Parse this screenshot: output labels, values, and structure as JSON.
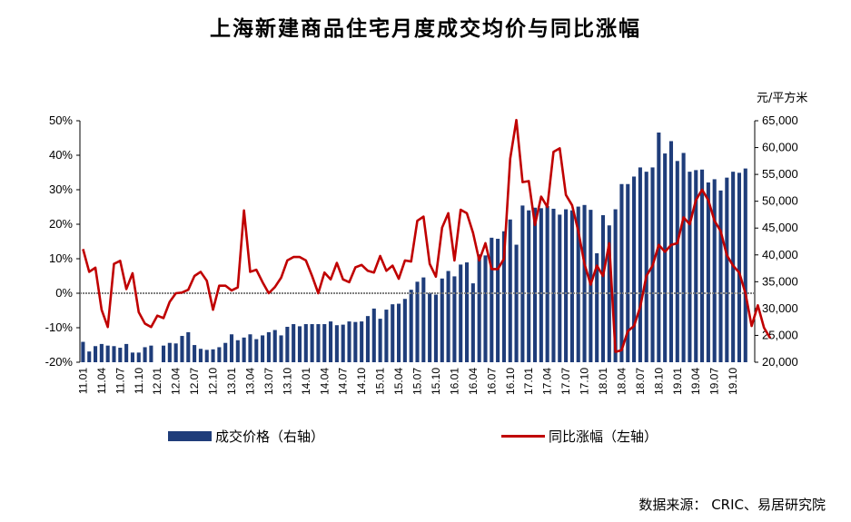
{
  "title": "上海新建商品住宅月度成交均价与同比涨幅",
  "source": "数据来源： CRIC、易居研究院",
  "legend": {
    "bar": "成交价格（右轴）",
    "line": "同比涨幅（左轴）"
  },
  "colors": {
    "bar": "#1F3D7A",
    "line": "#C00000",
    "zero_line": "#808080"
  },
  "chart_data": {
    "type": "bar+line",
    "x_tick_labels": [
      "11.01",
      "11.04",
      "11.07",
      "11.10",
      "12.01",
      "12.04",
      "12.07",
      "12.10",
      "13.01",
      "13.04",
      "13.07",
      "13.10",
      "14.01",
      "14.04",
      "14.07",
      "14.10",
      "15.01",
      "15.04",
      "15.07",
      "15.10",
      "16.01",
      "16.04",
      "16.07",
      "16.10",
      "17.01",
      "17.04",
      "17.07",
      "17.10",
      "18.01",
      "18.04",
      "18.07",
      "18.10",
      "19.01",
      "19.04",
      "19.07",
      "19.10"
    ],
    "y_left": {
      "min": -0.2,
      "max": 0.5,
      "ticks": [
        "-20%",
        "-10%",
        "0%",
        "10%",
        "20%",
        "30%",
        "40%",
        "50%"
      ]
    },
    "y_right": {
      "min": 20000,
      "max": 65000,
      "unit": "元/平方米",
      "ticks": [
        "20,000",
        "25,000",
        "30,000",
        "35,000",
        "40,000",
        "45,000",
        "50,000",
        "55,000",
        "60,000",
        "65,000"
      ]
    },
    "series": [
      {
        "name": "成交价格（右轴）",
        "type": "bar",
        "axis": "right",
        "values": [
          23800,
          22000,
          23000,
          23400,
          23100,
          23000,
          22700,
          23400,
          21800,
          21800,
          22800,
          23100,
          19900,
          23100,
          23600,
          23500,
          24900,
          25600,
          23200,
          22500,
          22300,
          22400,
          22800,
          23600,
          25200,
          24100,
          24600,
          25200,
          24300,
          25000,
          25600,
          26000,
          25000,
          26600,
          27100,
          26700,
          27100,
          27100,
          27100,
          27100,
          27600,
          26900,
          27000,
          27600,
          27500,
          27600,
          28600,
          30000,
          28100,
          29800,
          30800,
          30900,
          31800,
          33500,
          35000,
          35800,
          32900,
          32600,
          35600,
          37000,
          36000,
          38200,
          38600,
          34700,
          40100,
          39900,
          43200,
          43000,
          44400,
          46600,
          41900,
          49200,
          48300,
          48800,
          48700,
          49100,
          48600,
          47500,
          48500,
          48300,
          49000,
          49300,
          48400,
          40300,
          47400,
          45500,
          48500,
          53200,
          53200,
          54600,
          56300,
          55500,
          56300,
          62800,
          58900,
          61200,
          57500,
          59000,
          55500,
          55800,
          55900,
          53500,
          54100,
          52000,
          54400,
          55500,
          55300,
          56100
        ],
        "note": "values after index 108 clipped"
      },
      {
        "name": "同比涨幅（左轴）",
        "type": "line",
        "axis": "left",
        "values": [
          0.128,
          0.062,
          0.074,
          -0.048,
          -0.098,
          0.085,
          0.094,
          0.012,
          0.058,
          -0.055,
          -0.088,
          -0.098,
          -0.065,
          -0.072,
          -0.025,
          0.0,
          0.002,
          0.01,
          0.05,
          0.062,
          0.036,
          -0.048,
          0.022,
          0.022,
          0.008,
          0.017,
          0.24,
          0.062,
          0.068,
          0.032,
          0.0,
          0.018,
          0.045,
          0.095,
          0.105,
          0.105,
          0.095,
          0.05,
          0.0,
          0.06,
          0.04,
          0.088,
          0.04,
          0.032,
          0.075,
          0.082,
          0.065,
          0.06,
          0.108,
          0.065,
          0.08,
          0.042,
          0.095,
          0.092,
          0.21,
          0.222,
          0.085,
          0.048,
          0.19,
          0.232,
          0.095,
          0.242,
          0.232,
          0.175,
          0.095,
          0.145,
          0.07,
          0.07,
          0.1,
          0.39,
          0.502,
          0.322,
          0.325,
          0.198,
          0.28,
          0.25,
          0.41,
          0.42,
          0.285,
          0.255,
          0.18,
          0.085,
          0.025,
          0.08,
          0.05,
          0.145,
          -0.17,
          -0.165,
          -0.11,
          -0.095,
          -0.04,
          0.05,
          0.08,
          0.14,
          0.12,
          0.14,
          0.145,
          0.22,
          0.2,
          0.27,
          0.3,
          0.27,
          0.21,
          0.18,
          0.11,
          0.08,
          0.06,
          0.0,
          -0.095,
          -0.035,
          -0.1,
          -0.13
        ],
        "note": "line values approximated from plot"
      }
    ]
  }
}
